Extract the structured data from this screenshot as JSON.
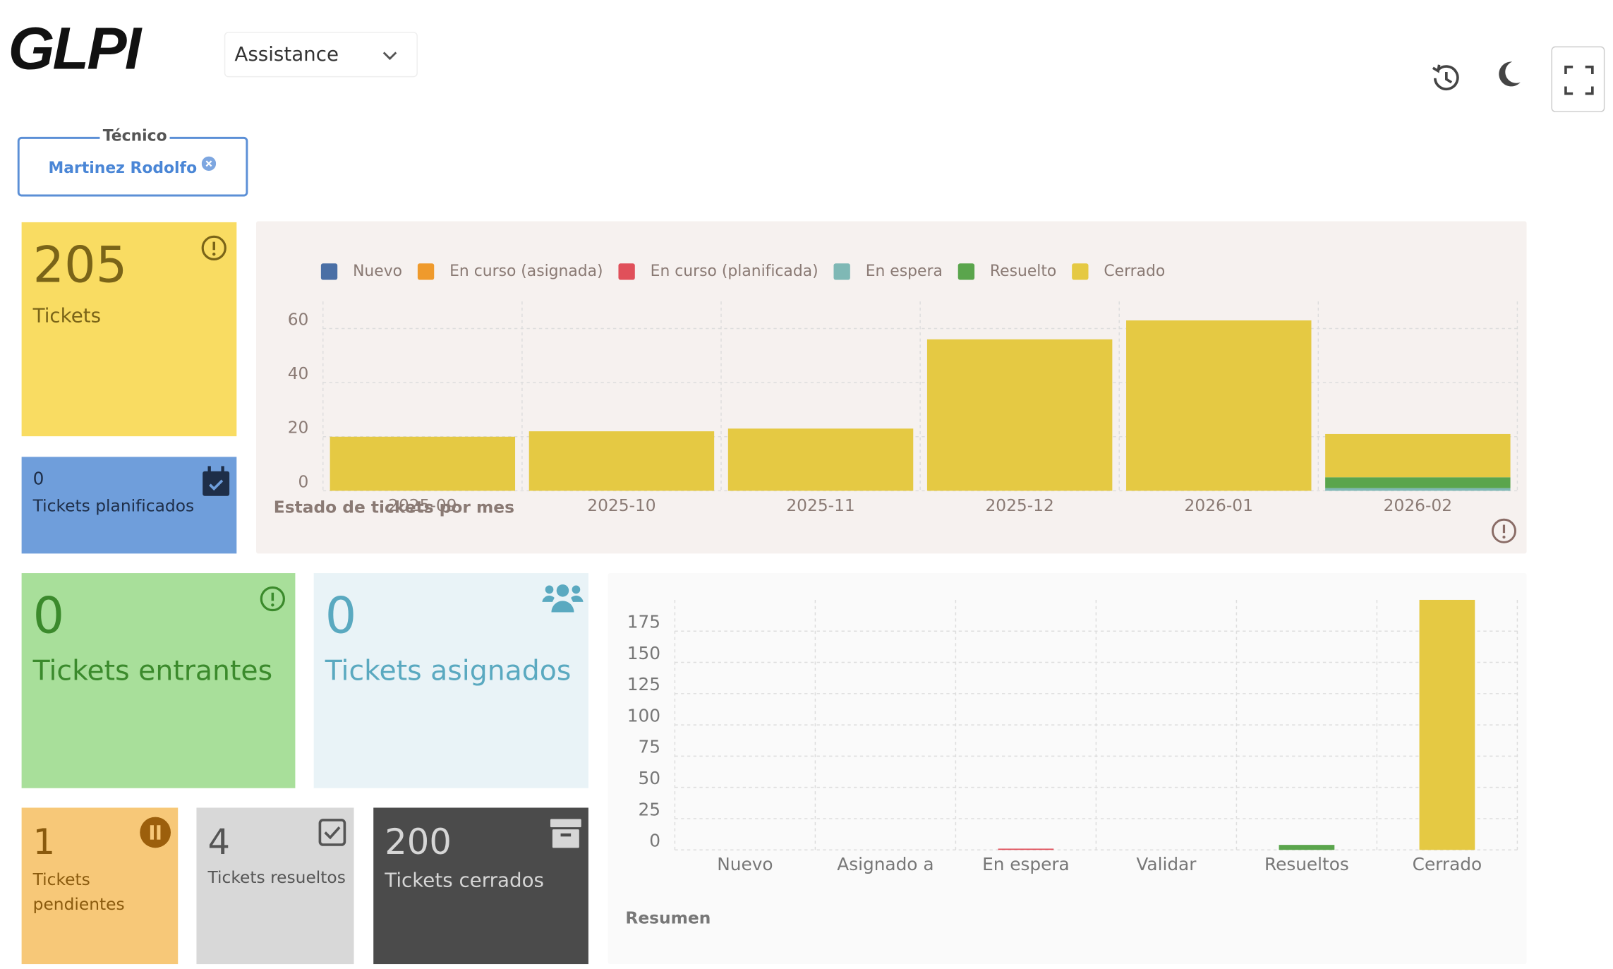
{
  "header": {
    "logo": "GLPI",
    "menu": "Assistance"
  },
  "filter": {
    "label": "Técnico",
    "value": "Martinez Rodolfo"
  },
  "cards": [
    {
      "value": 205,
      "label": "Tickets"
    },
    {
      "value": 0,
      "label": "Tickets planificados"
    },
    {
      "value": 0,
      "label": "Tickets entrantes"
    },
    {
      "value": 0,
      "label": "Tickets asignados"
    },
    {
      "value": 1,
      "label": "Tickets pendientes"
    },
    {
      "value": 4,
      "label": "Tickets resueltos"
    },
    {
      "value": 200,
      "label": "Tickets cerrados"
    }
  ],
  "chart_data": [
    {
      "type": "bar",
      "stacked": true,
      "title": "Estado de tickets por mes",
      "categories": [
        "2025-09",
        "2025-10",
        "2025-11",
        "2025-12",
        "2026-01",
        "2026-02"
      ],
      "series": [
        {
          "name": "Nuevo",
          "color": "#4a6fa5",
          "values": [
            0,
            0,
            0,
            0,
            0,
            0
          ]
        },
        {
          "name": "En curso (asignada)",
          "color": "#ef9a2c",
          "values": [
            0,
            0,
            0,
            0,
            0,
            0
          ]
        },
        {
          "name": "En curso (planificada)",
          "color": "#e0505a",
          "values": [
            0,
            0,
            0,
            0,
            0,
            0
          ]
        },
        {
          "name": "En espera",
          "color": "#7fb8b5",
          "values": [
            0,
            0,
            0,
            0,
            0,
            1
          ]
        },
        {
          "name": "Resuelto",
          "color": "#5aa54c",
          "values": [
            0,
            0,
            0,
            0,
            0,
            4
          ]
        },
        {
          "name": "Cerrado",
          "color": "#e5c943",
          "values": [
            20,
            22,
            23,
            56,
            63,
            16
          ]
        }
      ],
      "ylim": [
        0,
        70
      ],
      "yticks": [
        0,
        20,
        40,
        60
      ],
      "grid": true,
      "legend": "top"
    },
    {
      "type": "bar",
      "title": "Resumen",
      "categories": [
        "Nuevo",
        "Asignado a",
        "En espera",
        "Validar",
        "Resueltos",
        "Cerrado"
      ],
      "values": [
        0,
        0,
        1,
        0,
        4,
        200
      ],
      "colors": [
        "#4a6fa5",
        "#ef9a2c",
        "#e0505a",
        "#7fb8b5",
        "#5aa54c",
        "#e5c943"
      ],
      "ylim": [
        0,
        200
      ],
      "yticks": [
        0,
        25,
        50,
        75,
        100,
        125,
        150,
        175
      ],
      "grid": true
    }
  ]
}
